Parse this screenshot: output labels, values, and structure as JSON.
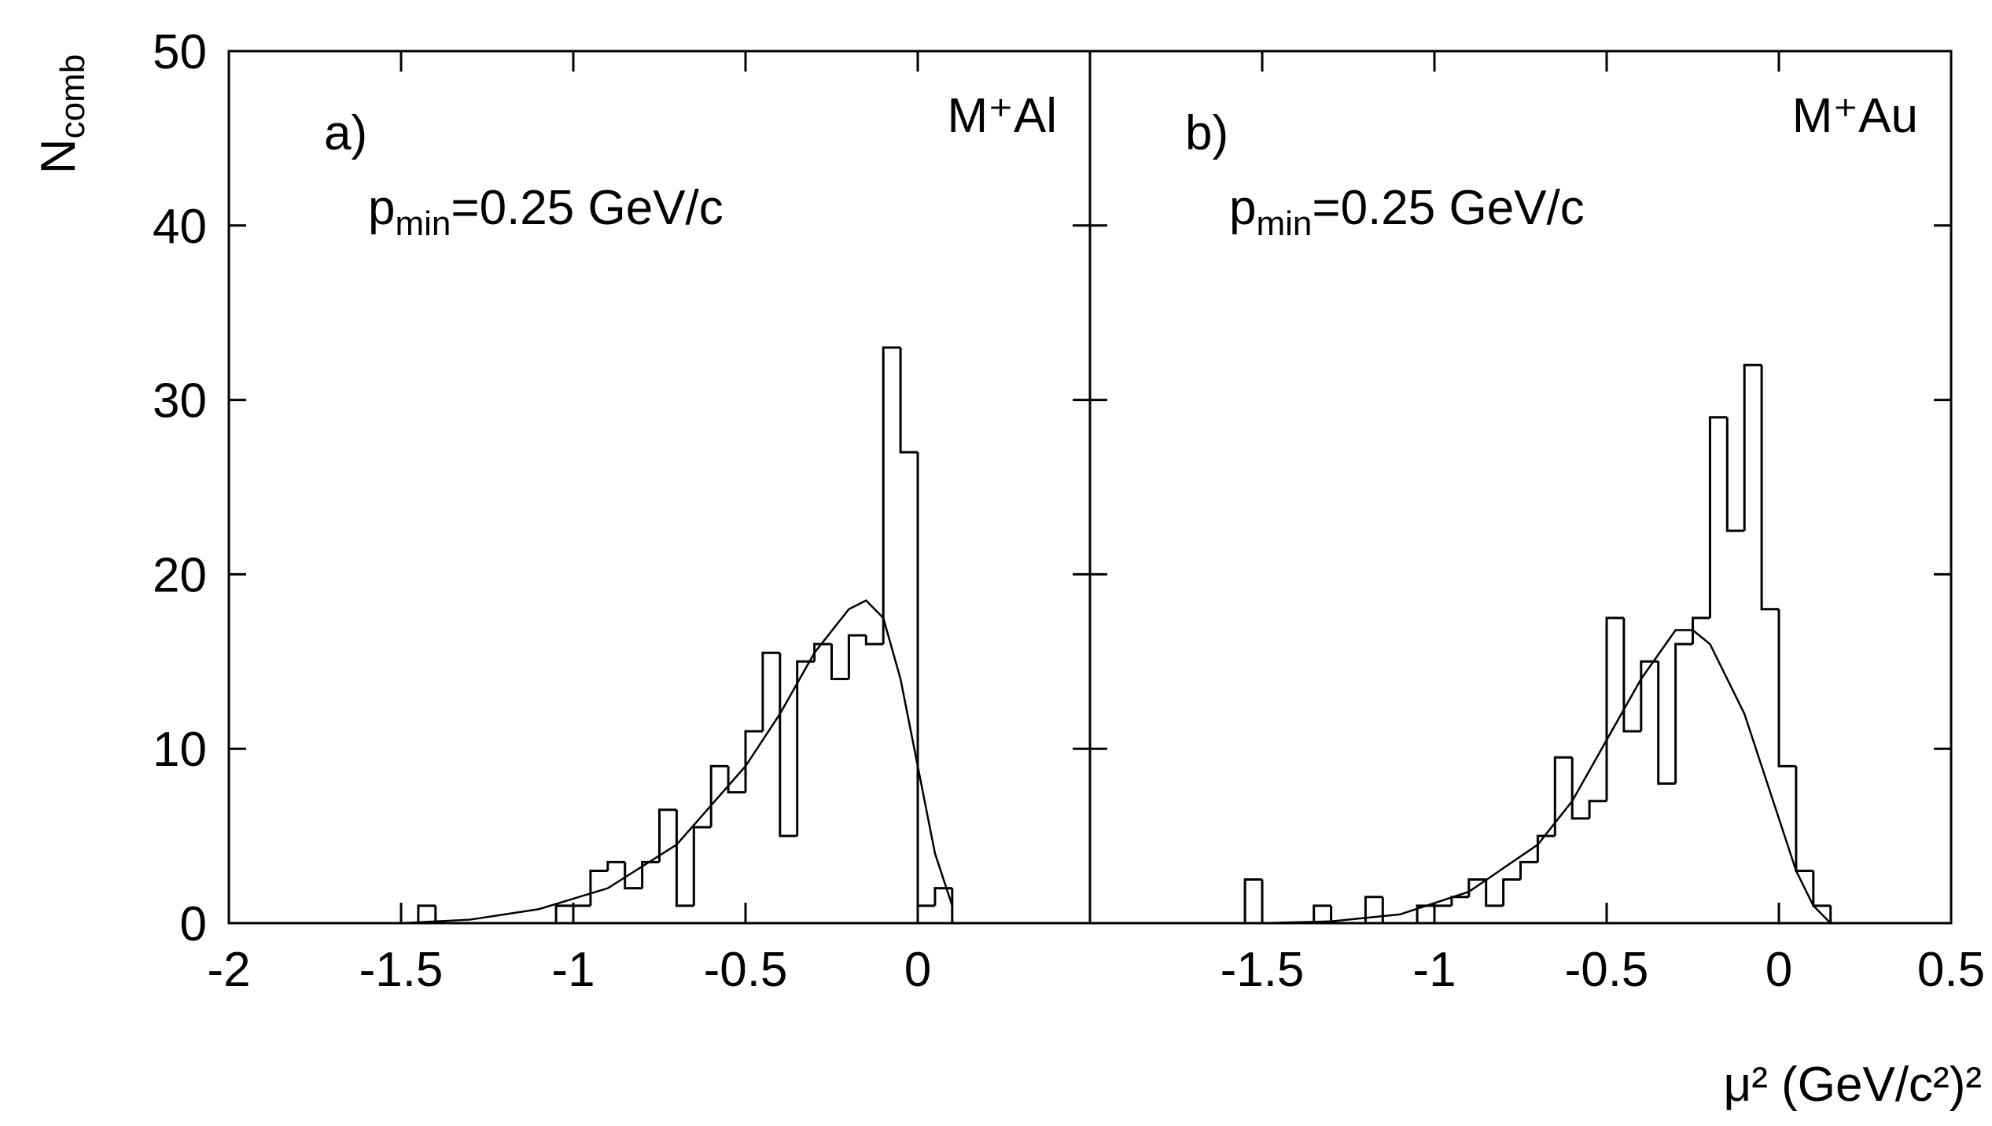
{
  "chart_data": [
    {
      "type": "histogram",
      "label": "a)",
      "target": "M⁺Al",
      "cut": {
        "main": "p",
        "sub": "min",
        "rest": "=0.25 GeV/c"
      },
      "bins": [
        -1.5,
        -1.45,
        -1.4,
        -1.35,
        -1.3,
        -1.25,
        -1.2,
        -1.15,
        -1.1,
        -1.05,
        -1.0,
        -0.95,
        -0.9,
        -0.85,
        -0.8,
        -0.75,
        -0.7,
        -0.65,
        -0.6,
        -0.55,
        -0.5,
        -0.45,
        -0.4,
        -0.35,
        -0.3,
        -0.25,
        -0.2,
        -0.15,
        -0.1,
        -0.05,
        0.0,
        0.05,
        0.1,
        0.15
      ],
      "values": [
        0,
        1,
        0,
        0,
        0,
        0,
        0,
        0,
        0,
        1,
        1,
        3,
        3.5,
        2,
        3.5,
        6.5,
        1,
        5.5,
        9,
        7.5,
        11,
        15.5,
        5,
        15,
        16,
        14,
        16.5,
        16,
        33,
        27,
        1,
        2,
        0
      ],
      "fit": {
        "x": [
          -1.5,
          -1.3,
          -1.1,
          -0.9,
          -0.7,
          -0.5,
          -0.4,
          -0.3,
          -0.2,
          -0.15,
          -0.1,
          -0.05,
          0,
          0.05,
          0.1
        ],
        "values": [
          0,
          0.2,
          0.8,
          2,
          4.5,
          9,
          12,
          15.5,
          18,
          18.5,
          17.5,
          14,
          9,
          4,
          1
        ]
      },
      "xlim": [
        -2,
        0.5
      ],
      "xticks": [
        -2,
        -1.5,
        -1,
        -0.5,
        0
      ],
      "ylim": [
        0,
        50
      ],
      "yticks": [
        0,
        10,
        20,
        30,
        40,
        50
      ],
      "ytick_labels": true
    },
    {
      "type": "histogram",
      "label": "b)",
      "target": "M⁺Au",
      "cut": {
        "main": "p",
        "sub": "min",
        "rest": "=0.25 GeV/c"
      },
      "bins": [
        -1.55,
        -1.5,
        -1.45,
        -1.4,
        -1.35,
        -1.3,
        -1.25,
        -1.2,
        -1.15,
        -1.1,
        -1.05,
        -1.0,
        -0.95,
        -0.9,
        -0.85,
        -0.8,
        -0.75,
        -0.7,
        -0.65,
        -0.6,
        -0.55,
        -0.5,
        -0.45,
        -0.4,
        -0.35,
        -0.3,
        -0.25,
        -0.2,
        -0.15,
        -0.1,
        -0.05,
        0.0,
        0.05,
        0.1,
        0.15
      ],
      "values": [
        2.5,
        0,
        0,
        0,
        1,
        0,
        0,
        1.5,
        0,
        0,
        1,
        1,
        1.5,
        2.5,
        1,
        2.5,
        3.5,
        5,
        9.5,
        6,
        7,
        17.5,
        11,
        15,
        8,
        16,
        17.5,
        29,
        22.5,
        32,
        18,
        9,
        3,
        1
      ],
      "fit": {
        "x": [
          -1.5,
          -1.3,
          -1.1,
          -0.9,
          -0.7,
          -0.6,
          -0.5,
          -0.4,
          -0.3,
          -0.25,
          -0.2,
          -0.1,
          0,
          0.05,
          0.1,
          0.15
        ],
        "values": [
          0,
          0.1,
          0.5,
          1.8,
          4.5,
          7,
          10.5,
          14,
          16.8,
          16.8,
          16,
          12,
          6,
          3,
          1,
          0
        ]
      },
      "xlim": [
        -2,
        0.5
      ],
      "xticks": [
        -1.5,
        -1,
        -0.5,
        0,
        0.5
      ],
      "ylim": [
        0,
        50
      ],
      "yticks": [
        0,
        10,
        20,
        30,
        40,
        50
      ],
      "ytick_labels": false
    }
  ],
  "figure": {
    "ylabel": {
      "main": "N",
      "sub": "comb"
    },
    "xlabel": "μ² (GeV/c²)²"
  }
}
